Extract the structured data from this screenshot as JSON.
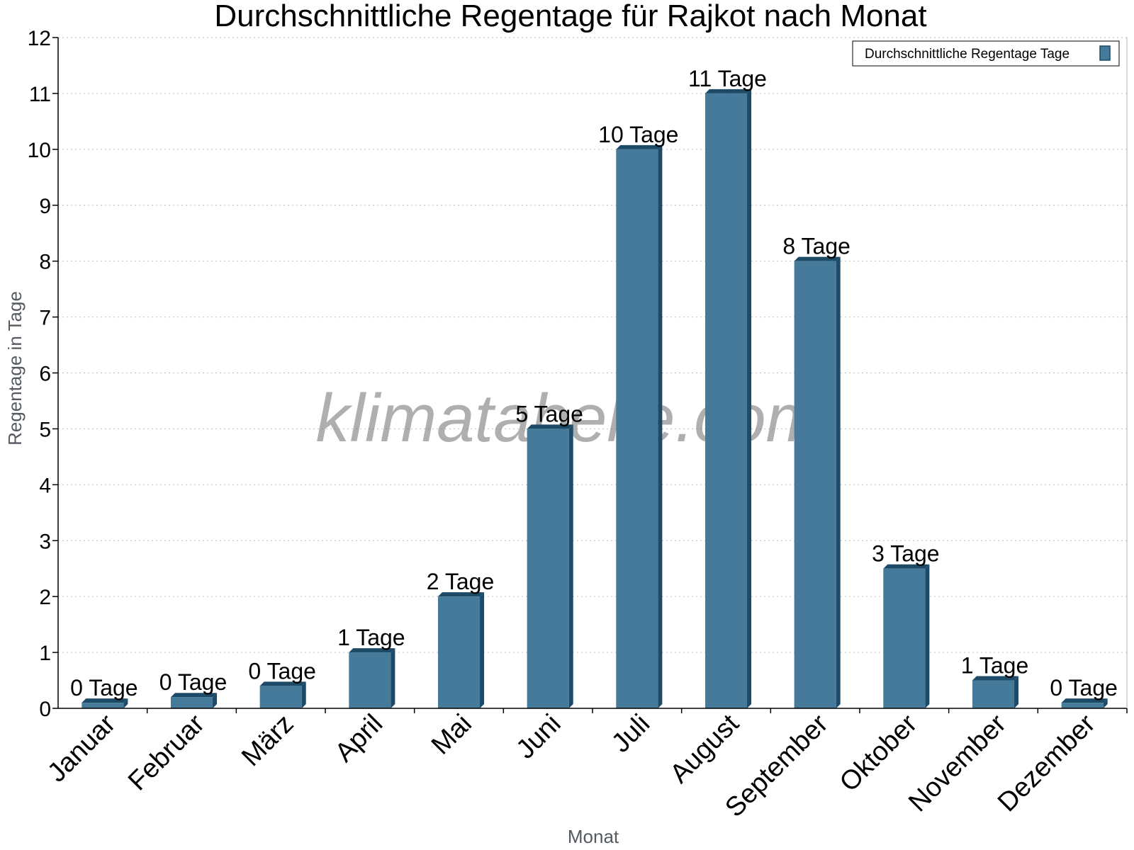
{
  "chart_data": {
    "type": "bar",
    "title": "Durchschnittliche Regentage für Rajkot nach Monat",
    "xlabel": "Monat",
    "ylabel": "Regentage in Tage",
    "ylim": [
      0,
      12
    ],
    "yticks": [
      0,
      1,
      2,
      3,
      4,
      5,
      6,
      7,
      8,
      9,
      10,
      11,
      12
    ],
    "grid": true,
    "legend": {
      "position": "top-right",
      "entries": [
        "Durchschnittliche Regentage Tage"
      ]
    },
    "categories": [
      "Januar",
      "Februar",
      "März",
      "April",
      "Mai",
      "Juni",
      "Juli",
      "August",
      "September",
      "Oktober",
      "November",
      "Dezember"
    ],
    "series": [
      {
        "name": "Durchschnittliche Regentage Tage",
        "color": "#457a9b",
        "values": [
          0.1,
          0.2,
          0.4,
          1,
          2,
          5,
          10,
          11,
          8,
          2.5,
          0.5,
          0.1
        ],
        "labels": [
          "0 Tage",
          "0 Tage",
          "0 Tage",
          "1 Tage",
          "2 Tage",
          "5 Tage",
          "10 Tage",
          "11 Tage",
          "8 Tage",
          "3 Tage",
          "1 Tage",
          "0 Tage"
        ]
      }
    ],
    "watermark": "klimatabelle.com"
  }
}
